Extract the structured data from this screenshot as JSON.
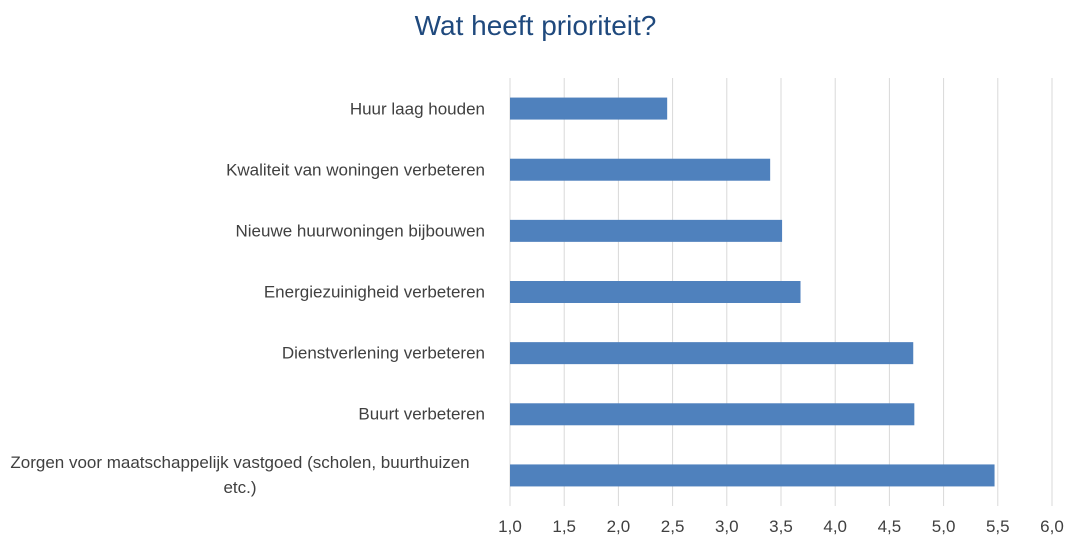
{
  "chart_data": {
    "type": "bar",
    "orientation": "horizontal",
    "title": "Wat heeft prioriteit?",
    "categories": [
      "Huur laag houden",
      "Kwaliteit van woningen verbeteren",
      "Nieuwe huurwoningen bijbouwen",
      "Energiezuinigheid verbeteren",
      "Dienstverlening verbeteren",
      "Buurt verbeteren",
      "Zorgen voor maatschappelijk vastgoed (scholen, buurthuizen etc.)"
    ],
    "values": [
      2.45,
      3.4,
      3.51,
      3.68,
      4.72,
      4.73,
      5.47
    ],
    "color": "#4f81bd",
    "xlim": [
      1.0,
      6.0
    ],
    "xticks": [
      {
        "value": 1.0,
        "label": "1,0"
      },
      {
        "value": 1.5,
        "label": "1,5"
      },
      {
        "value": 2.0,
        "label": "2,0"
      },
      {
        "value": 2.5,
        "label": "2,5"
      },
      {
        "value": 3.0,
        "label": "3,0"
      },
      {
        "value": 3.5,
        "label": "3,5"
      },
      {
        "value": 4.0,
        "label": "4,0"
      },
      {
        "value": 4.5,
        "label": "4,5"
      },
      {
        "value": 5.0,
        "label": "5,0"
      },
      {
        "value": 5.5,
        "label": "5,5"
      },
      {
        "value": 6.0,
        "label": "6,0"
      }
    ],
    "grid": true
  }
}
